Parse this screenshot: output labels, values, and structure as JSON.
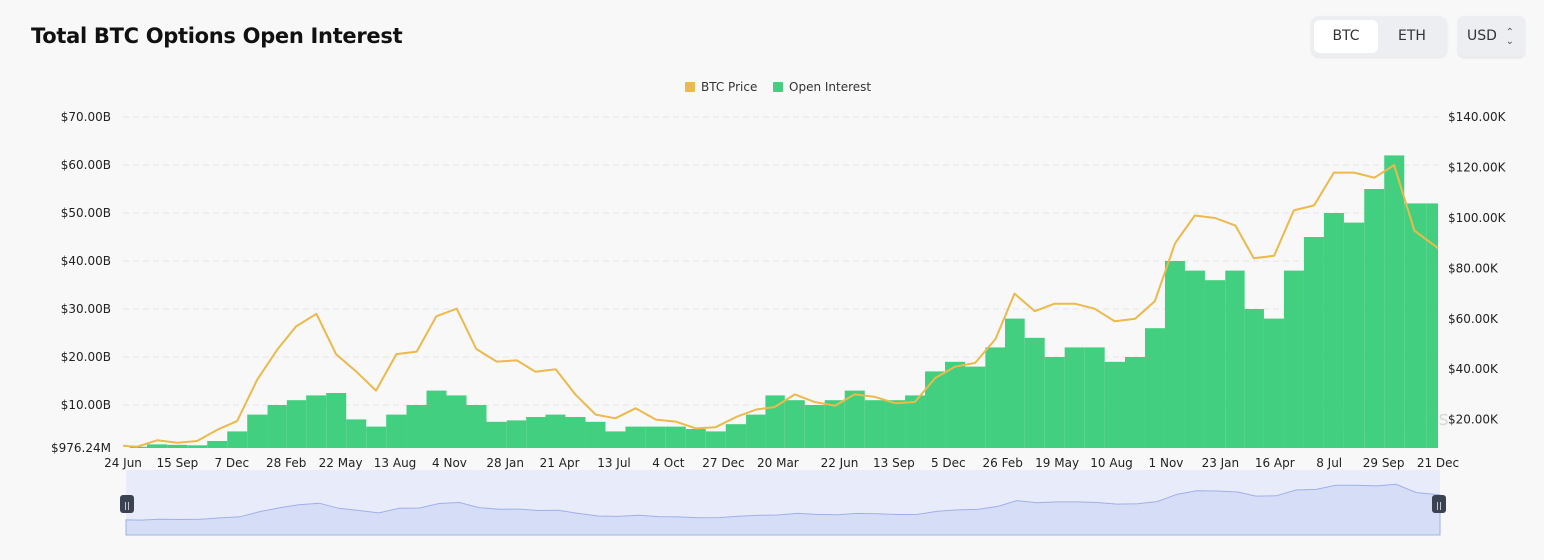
{
  "header": {
    "title": "Total BTC Options Open Interest"
  },
  "asset_toggle": {
    "options": [
      "BTC",
      "ETH"
    ],
    "selected": "BTC"
  },
  "currency_select": {
    "value": "USD"
  },
  "watermark": "coinglass",
  "colors": {
    "price": "#ecb94a",
    "open_interest": "#42cf7f",
    "navigator": "#dde4f8"
  },
  "chart_data": {
    "type": "bar+line",
    "legend": {
      "position": "top-center",
      "items": [
        "BTC Price",
        "Open Interest"
      ]
    },
    "grid": true,
    "left_axis": {
      "ticks": [
        "$976.24M",
        "$10.00B",
        "$20.00B",
        "$30.00B",
        "$40.00B",
        "$50.00B",
        "$60.00B",
        "$70.00B"
      ],
      "tick_values": [
        0.97624,
        10,
        20,
        30,
        40,
        50,
        60,
        70
      ],
      "unit": "USD billions",
      "ylim": [
        0.97624,
        70
      ]
    },
    "right_axis": {
      "ticks": [
        "$20.00K",
        "$40.00K",
        "$60.00K",
        "$80.00K",
        "$100.00K",
        "$120.00K",
        "$140.00K"
      ],
      "tick_values": [
        20,
        40,
        60,
        80,
        100,
        120,
        140
      ],
      "unit": "USD thousands",
      "ylim": [
        9,
        140
      ]
    },
    "x_axis": {
      "ticks": [
        "24 Jun",
        "15 Sep",
        "7 Dec",
        "28 Feb",
        "22 May",
        "13 Aug",
        "4 Nov",
        "28 Jan",
        "21 Apr",
        "13 Jul",
        "4 Oct",
        "27 Dec",
        "20 Mar",
        "22 Jun",
        "13 Sep",
        "5 Dec",
        "26 Feb",
        "19 May",
        "10 Aug",
        "1 Nov",
        "23 Jan",
        "16 Apr",
        "8 Jul",
        "29 Sep",
        "21 Dec"
      ],
      "tick_dates": [
        "2020-06-24",
        "2020-09-15",
        "2020-12-07",
        "2021-02-28",
        "2021-05-22",
        "2021-08-13",
        "2021-11-04",
        "2022-01-28",
        "2022-04-21",
        "2022-07-13",
        "2022-10-04",
        "2022-12-27",
        "2023-03-20",
        "2023-06-22",
        "2023-09-13",
        "2023-12-05",
        "2024-02-26",
        "2024-05-19",
        "2024-08-10",
        "2024-11-01",
        "2025-01-23",
        "2025-04-16",
        "2025-07-08",
        "2025-09-29",
        "2025-12-21"
      ]
    },
    "x": [
      "2020-06-24",
      "2020-07-15",
      "2020-08-15",
      "2020-09-15",
      "2020-10-15",
      "2020-11-15",
      "2020-12-15",
      "2021-01-15",
      "2021-02-15",
      "2021-03-15",
      "2021-04-15",
      "2021-05-15",
      "2021-06-15",
      "2021-07-15",
      "2021-08-15",
      "2021-09-15",
      "2021-10-15",
      "2021-11-15",
      "2021-12-15",
      "2022-01-15",
      "2022-02-15",
      "2022-03-15",
      "2022-04-15",
      "2022-05-15",
      "2022-06-15",
      "2022-07-15",
      "2022-08-15",
      "2022-09-15",
      "2022-10-15",
      "2022-11-15",
      "2022-12-15",
      "2023-01-15",
      "2023-02-15",
      "2023-03-15",
      "2023-04-15",
      "2023-05-15",
      "2023-06-15",
      "2023-07-15",
      "2023-08-15",
      "2023-09-15",
      "2023-10-15",
      "2023-11-15",
      "2023-12-15",
      "2024-01-15",
      "2024-02-15",
      "2024-03-15",
      "2024-04-15",
      "2024-05-15",
      "2024-06-15",
      "2024-07-15",
      "2024-08-15",
      "2024-09-15",
      "2024-10-15",
      "2024-11-15",
      "2024-12-15",
      "2025-01-15",
      "2025-02-15",
      "2025-03-15",
      "2025-04-15",
      "2025-05-15",
      "2025-06-15",
      "2025-07-15",
      "2025-08-15",
      "2025-09-15",
      "2025-10-15",
      "2025-11-15",
      "2025-12-21"
    ],
    "series": [
      {
        "name": "BTC Price",
        "axis": "right",
        "unit": "USD thousands",
        "type": "line",
        "values": [
          9.6,
          9.2,
          11.8,
          10.8,
          11.5,
          16,
          19.4,
          36,
          48,
          57,
          62,
          46,
          39,
          31.5,
          46,
          47,
          61,
          64,
          48,
          43,
          43.5,
          39,
          40,
          30,
          22,
          20.5,
          24.5,
          20,
          19.2,
          16.5,
          17,
          21,
          24,
          25,
          30,
          27,
          25.5,
          30,
          29,
          26.5,
          27,
          36.5,
          41,
          42.5,
          52,
          70,
          63,
          66,
          66,
          64,
          59,
          60,
          67,
          90,
          101,
          100,
          97,
          84,
          85,
          103,
          105,
          118,
          118,
          116,
          121,
          95,
          88
        ]
      },
      {
        "name": "Open Interest",
        "axis": "left",
        "unit": "USD billions",
        "type": "bar",
        "values": [
          1.0,
          1.3,
          1.8,
          1.7,
          1.6,
          2.5,
          4.5,
          8,
          10,
          11,
          12,
          12.5,
          7,
          5.5,
          8,
          10,
          13,
          12,
          10,
          6.5,
          6.8,
          7.5,
          8,
          7.5,
          6.5,
          4.5,
          5.5,
          5.5,
          5.5,
          5,
          4.5,
          6,
          8,
          12,
          11,
          10,
          11,
          13,
          11,
          11,
          12,
          17,
          19,
          18,
          22,
          28,
          24,
          20,
          22,
          22,
          19,
          20,
          26,
          40,
          38,
          36,
          38,
          30,
          28,
          38,
          45,
          50,
          48,
          55,
          62,
          52,
          52
        ]
      }
    ]
  }
}
